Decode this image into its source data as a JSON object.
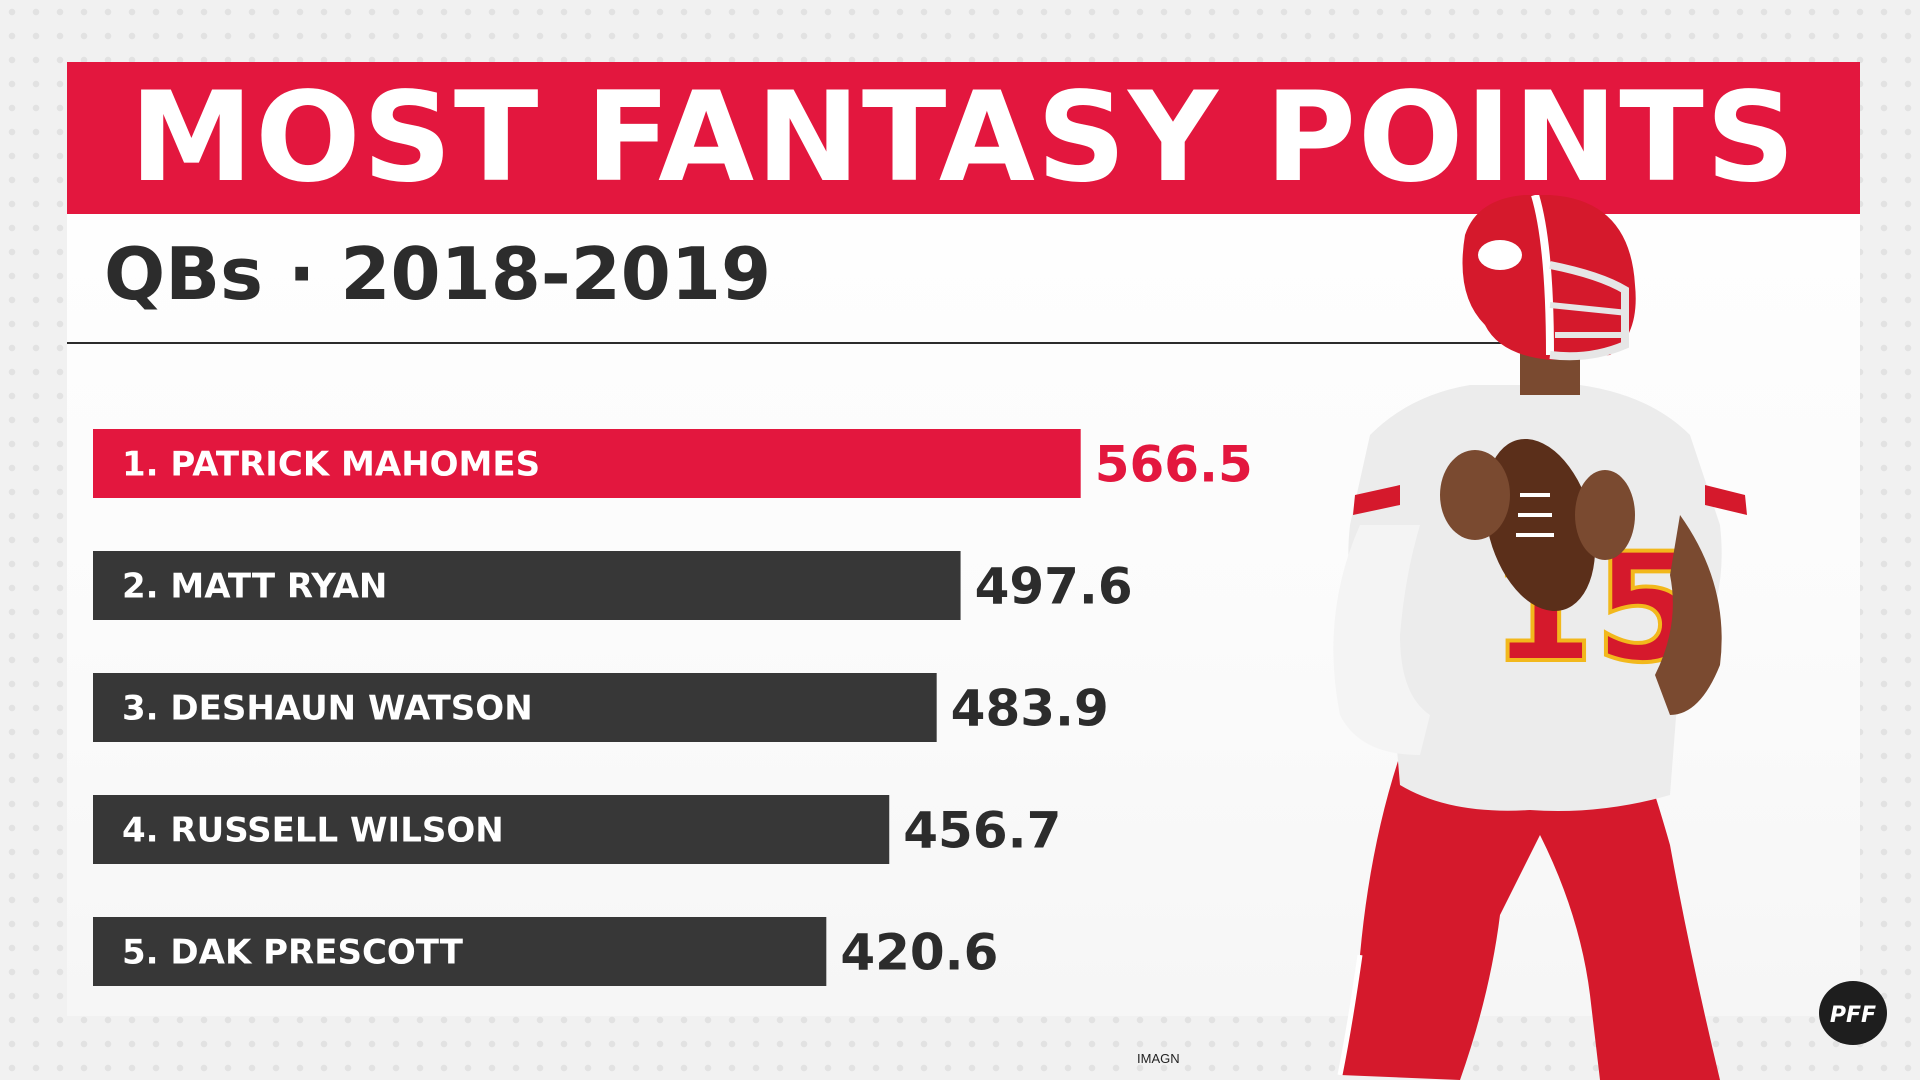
{
  "title": "MOST FANTASY POINTS",
  "subtitle": "QBs · 2018-2019",
  "credit": "IMAGN",
  "logo_text": "PFF",
  "colors": {
    "accent": "#e3173e",
    "dark_bar": "#373737",
    "text_dark": "#2c2c2c"
  },
  "chart_data": {
    "type": "bar",
    "orientation": "horizontal",
    "title": "MOST FANTASY POINTS",
    "subtitle": "QBs · 2018-2019",
    "categories": [
      "1. PATRICK MAHOMES",
      "2. MATT RYAN",
      "3. DESHAUN WATSON",
      "4. RUSSELL WILSON",
      "5. DAK PRESCOTT"
    ],
    "values": [
      566.5,
      497.6,
      483.9,
      456.7,
      420.6
    ],
    "value_labels": [
      "566.5",
      "497.6",
      "483.9",
      "456.7",
      "420.6"
    ],
    "highlight_index": 0,
    "grid": false,
    "legend": "none"
  }
}
